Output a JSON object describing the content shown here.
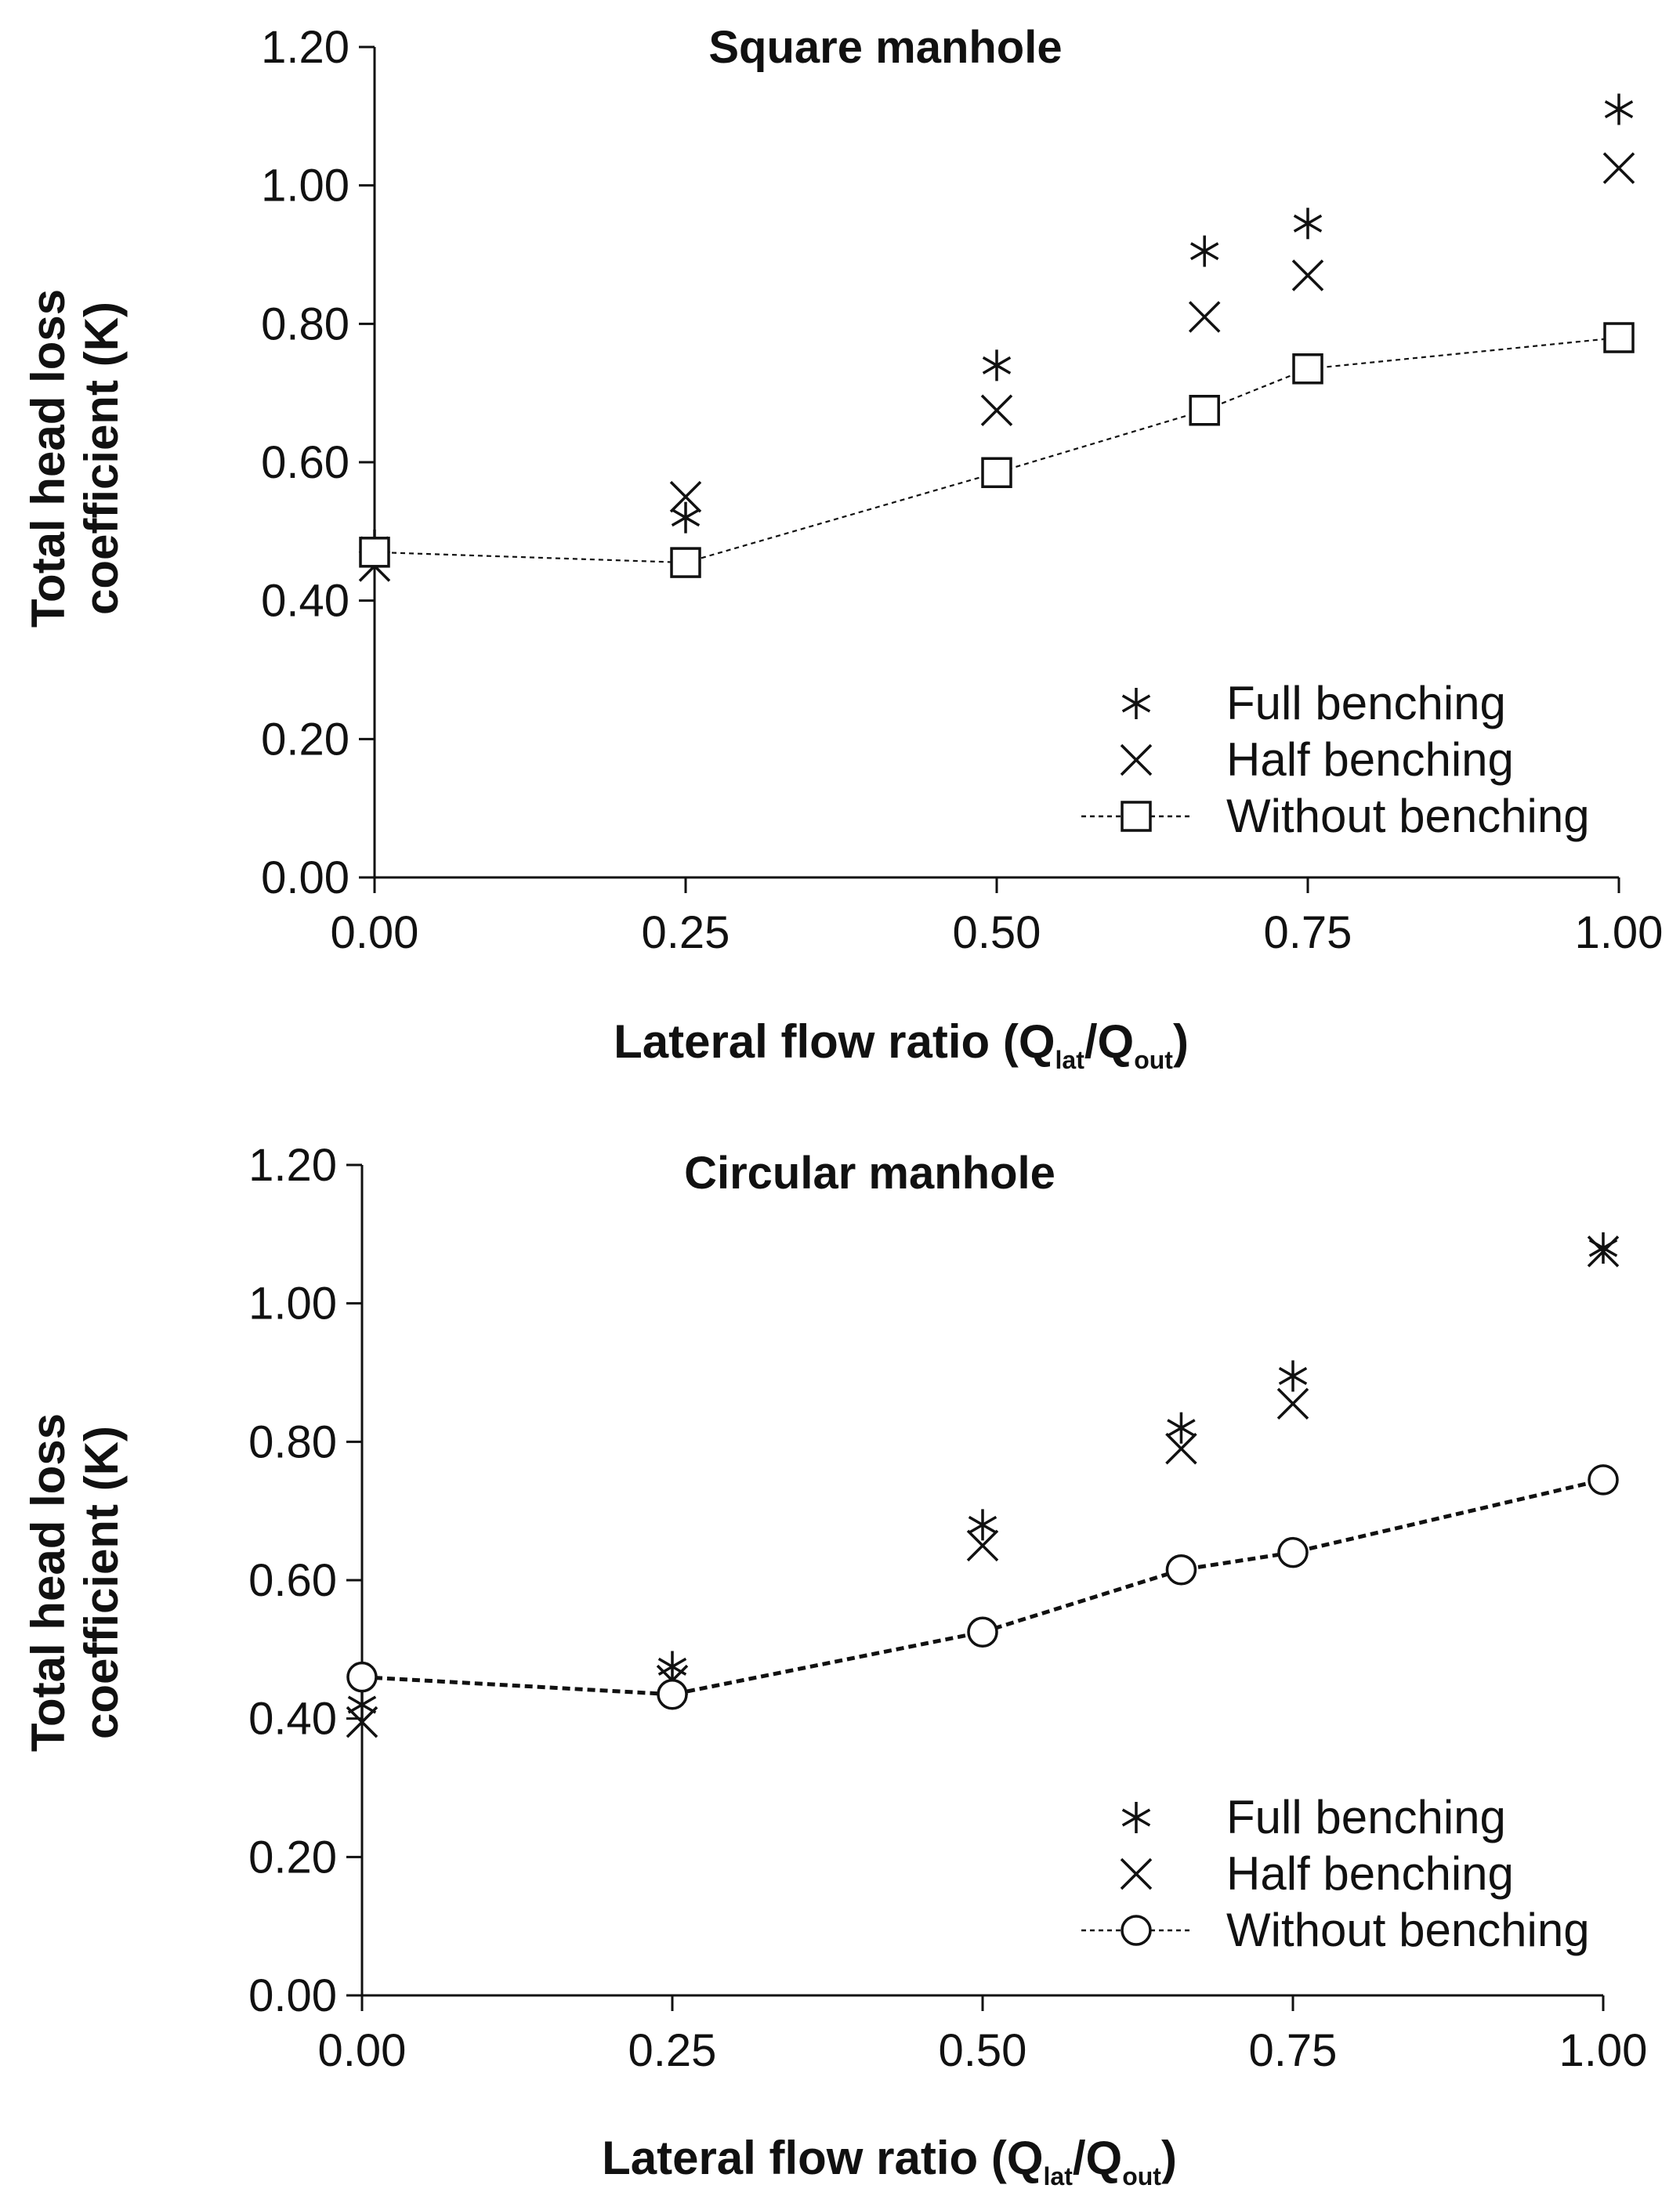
{
  "chart_data": [
    {
      "type": "scatter",
      "title": "Square manhole",
      "xlabel": "Lateral flow ratio (Q",
      "xlabel_sub1": "lat",
      "xlabel_mid": "/Q",
      "xlabel_sub2": "out",
      "xlabel_end": ")",
      "ylabel_line1": "Total head loss",
      "ylabel_line2": "coefficient (K)",
      "xlim": [
        0,
        1
      ],
      "ylim": [
        0,
        1.2
      ],
      "xticks": [
        0,
        0.25,
        0.5,
        0.75,
        1.0
      ],
      "xtick_labels": [
        "0.00",
        "0.25",
        "0.50",
        "0.75",
        "1.00"
      ],
      "yticks": [
        0,
        0.2,
        0.4,
        0.6,
        0.8,
        1.0,
        1.2
      ],
      "ytick_labels": [
        "0.00",
        "0.20",
        "0.40",
        "0.60",
        "0.80",
        "1.00",
        "1.20"
      ],
      "legend_position": "bottom-right",
      "series": [
        {
          "name": "Full benching",
          "marker": "asterisk",
          "line": false,
          "x": [
            0,
            0.25,
            0.5,
            0.667,
            0.75,
            1.0
          ],
          "y": [
            0.48,
            0.52,
            0.74,
            0.905,
            0.945,
            1.11
          ]
        },
        {
          "name": "Half benching",
          "marker": "cross",
          "line": false,
          "x": [
            0,
            0.25,
            0.5,
            0.667,
            0.75,
            1.0
          ],
          "y": [
            0.45,
            0.55,
            0.675,
            0.81,
            0.87,
            1.025
          ]
        },
        {
          "name": "Without benching",
          "marker": "square",
          "line": true,
          "x": [
            0,
            0.25,
            0.5,
            0.667,
            0.75,
            1.0
          ],
          "y": [
            0.47,
            0.455,
            0.585,
            0.675,
            0.735,
            0.78
          ]
        }
      ]
    },
    {
      "type": "scatter",
      "title": "Circular manhole",
      "xlabel": "Lateral flow ratio (Q",
      "xlabel_sub1": "lat",
      "xlabel_mid": "/Q",
      "xlabel_sub2": "out",
      "xlabel_end": ")",
      "ylabel_line1": "Total head loss",
      "ylabel_line2": "coefficient (K)",
      "xlim": [
        0,
        1
      ],
      "ylim": [
        0,
        1.2
      ],
      "xticks": [
        0,
        0.25,
        0.5,
        0.75,
        1.0
      ],
      "xtick_labels": [
        "0.00",
        "0.25",
        "0.50",
        "0.75",
        "1.00"
      ],
      "yticks": [
        0,
        0.2,
        0.4,
        0.6,
        0.8,
        1.0,
        1.2
      ],
      "ytick_labels": [
        "0.00",
        "0.20",
        "0.40",
        "0.60",
        "0.80",
        "1.00",
        "1.20"
      ],
      "legend_position": "bottom-right",
      "series": [
        {
          "name": "Full benching",
          "marker": "asterisk",
          "line": false,
          "x": [
            0,
            0.25,
            0.5,
            0.66,
            0.75,
            1.0
          ],
          "y": [
            0.42,
            0.475,
            0.68,
            0.82,
            0.895,
            1.08
          ]
        },
        {
          "name": "Half benching",
          "marker": "cross",
          "line": false,
          "x": [
            0,
            0.25,
            0.5,
            0.66,
            0.75,
            1.0
          ],
          "y": [
            0.395,
            0.455,
            0.65,
            0.79,
            0.855,
            1.075
          ]
        },
        {
          "name": "Without benching",
          "marker": "circle",
          "line": true,
          "x": [
            0,
            0.25,
            0.5,
            0.66,
            0.75,
            1.0
          ],
          "y": [
            0.46,
            0.435,
            0.525,
            0.615,
            0.64,
            0.745
          ]
        }
      ]
    }
  ]
}
